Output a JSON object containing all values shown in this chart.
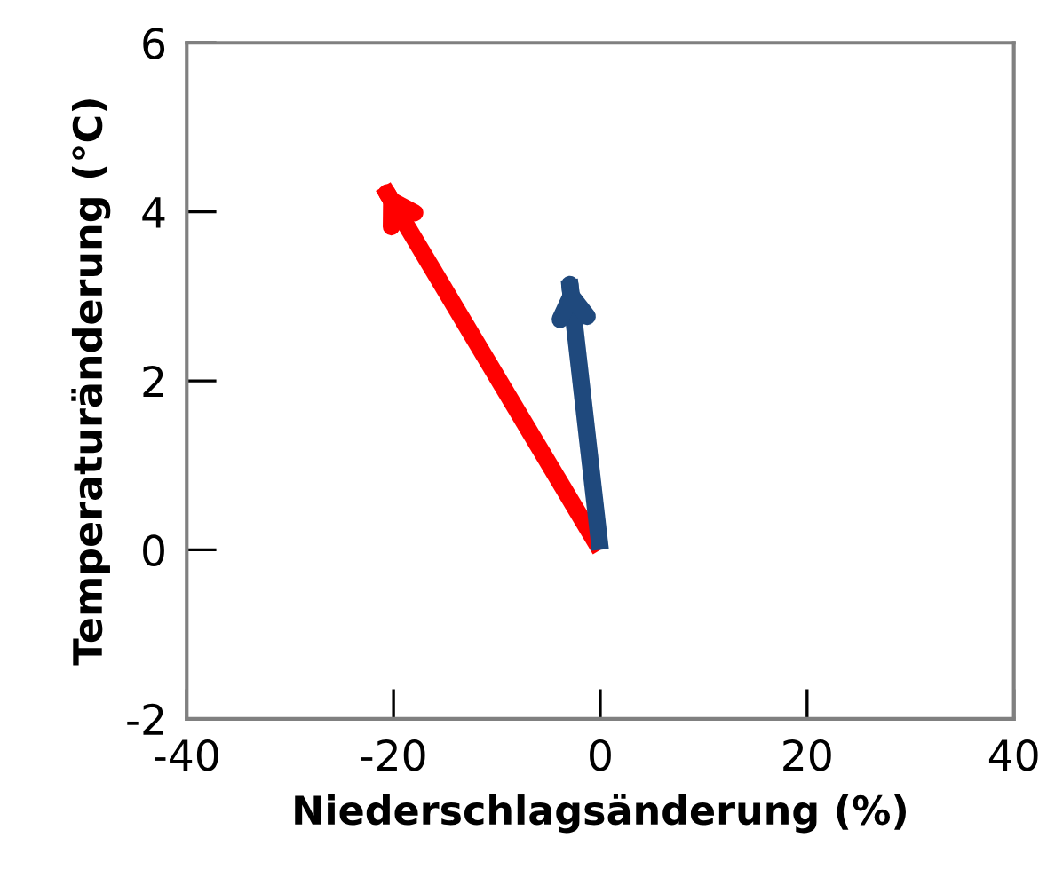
{
  "chart_data": {
    "type": "line",
    "xlabel": "Niederschlagsänderung (%)",
    "ylabel": "Temperaturänderung (°C)",
    "series": [
      {
        "color": "#ff0000",
        "x": [
          0,
          -21
        ],
        "values": [
          0,
          4.3
        ]
      },
      {
        "color": "#1f497d",
        "x": [
          0,
          -3
        ],
        "values": [
          0,
          3.2
        ]
      }
    ],
    "xlim": [
      -40,
      40
    ],
    "xticks": [
      -40,
      -20,
      0,
      20,
      40
    ],
    "ylim": [
      -2,
      6
    ],
    "yticks": [
      -2,
      0,
      2,
      4,
      6
    ],
    "grid": false,
    "marker": "none",
    "line_style": "solid"
  }
}
